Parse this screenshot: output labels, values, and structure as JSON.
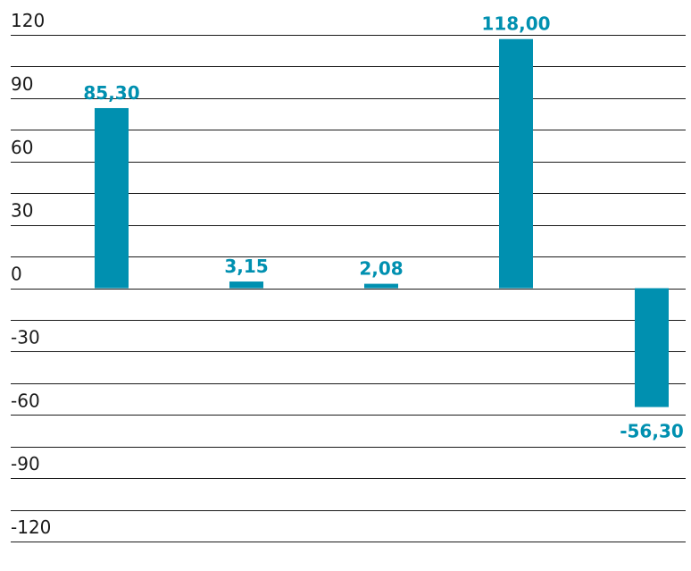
{
  "chart_data": {
    "type": "bar",
    "categories": [
      "",
      "",
      "",
      "",
      ""
    ],
    "values": [
      85.3,
      3.15,
      2.08,
      118.0,
      -56.3
    ],
    "data_labels": [
      "85,30",
      "3,15",
      "2,08",
      "118,00",
      "-56,30"
    ],
    "title": "",
    "xlabel": "",
    "ylabel": "",
    "ylim": [
      -120,
      120
    ],
    "y_ticks": [
      120,
      90,
      60,
      30,
      0,
      -30,
      -60,
      -90,
      -120
    ],
    "grid_step": 15,
    "grid": true,
    "legend": "none",
    "bar_color": "#0090b0",
    "label_color": "#0090b0"
  }
}
